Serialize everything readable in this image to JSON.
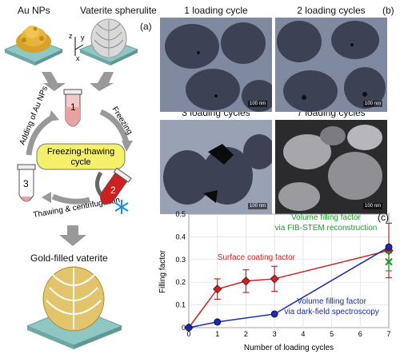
{
  "panel_a": {
    "letter": "(a)",
    "au_nps_label": "Au NPs",
    "vaterite_label": "Vaterite spherulite",
    "axes": {
      "z": "z",
      "y": "y",
      "x": "x"
    },
    "cycle_label_line1": "Freezing-thawing",
    "cycle_label_line2": "cycle",
    "step_adding": "Adding of Au NPs",
    "step_freezing": "Freezing",
    "step_thawing": "Thawing & centrifugation",
    "tube1": "1",
    "tube2": "2",
    "tube3": "3",
    "result_label": "Gold-filled vaterite"
  },
  "panel_b": {
    "letter": "(b)",
    "tiles": [
      {
        "title": "1 loading cycle",
        "scale": "100 nm"
      },
      {
        "title": "2 loading cycles",
        "scale": "100 nm"
      },
      {
        "title": "3 loading cycles",
        "scale": "100 nm"
      },
      {
        "title": "7 loading cycles",
        "scale": "100 nm"
      }
    ]
  },
  "chart_data": {
    "type": "line",
    "letter": "(c)",
    "xlabel": "Number of loading cycles",
    "ylabel": "Filling factor",
    "xlim": [
      0,
      7
    ],
    "ylim": [
      0,
      0.5
    ],
    "xticks": [
      0,
      1,
      2,
      3,
      4,
      5,
      6,
      7
    ],
    "yticks": [
      0,
      0.1,
      0.2,
      0.3,
      0.4,
      0.5
    ],
    "series": [
      {
        "name": "Surface coating factor",
        "color": "#cc2222",
        "marker": "diamond",
        "x": [
          0,
          1,
          2,
          3,
          7
        ],
        "y": [
          0.0,
          0.17,
          0.205,
          0.215,
          0.34
        ],
        "err": [
          0,
          0.045,
          0.05,
          0.055,
          0.12
        ]
      },
      {
        "name": "Volume filling factor via dark-field spectroscopy",
        "color": "#1a2aa8",
        "marker": "circle",
        "x": [
          0,
          1,
          3,
          7
        ],
        "y": [
          0.0,
          0.025,
          0.06,
          0.355
        ],
        "err": [
          0,
          0,
          0,
          0
        ]
      },
      {
        "name": "Volume filling factor via FIB-STEM reconstruction",
        "color": "#1e9a2a",
        "marker": "x",
        "x": [
          7
        ],
        "y": [
          0.29
        ],
        "err": [
          0.04
        ]
      }
    ],
    "annotations": {
      "red_text": "Surface coating factor",
      "green_text_line1": "Volume filling factor",
      "green_text_line2": "via FIB-STEM reconstruction",
      "blue_text_line1": "Volume filling factor",
      "blue_text_line2": "via dark-field spectroscopy"
    }
  }
}
